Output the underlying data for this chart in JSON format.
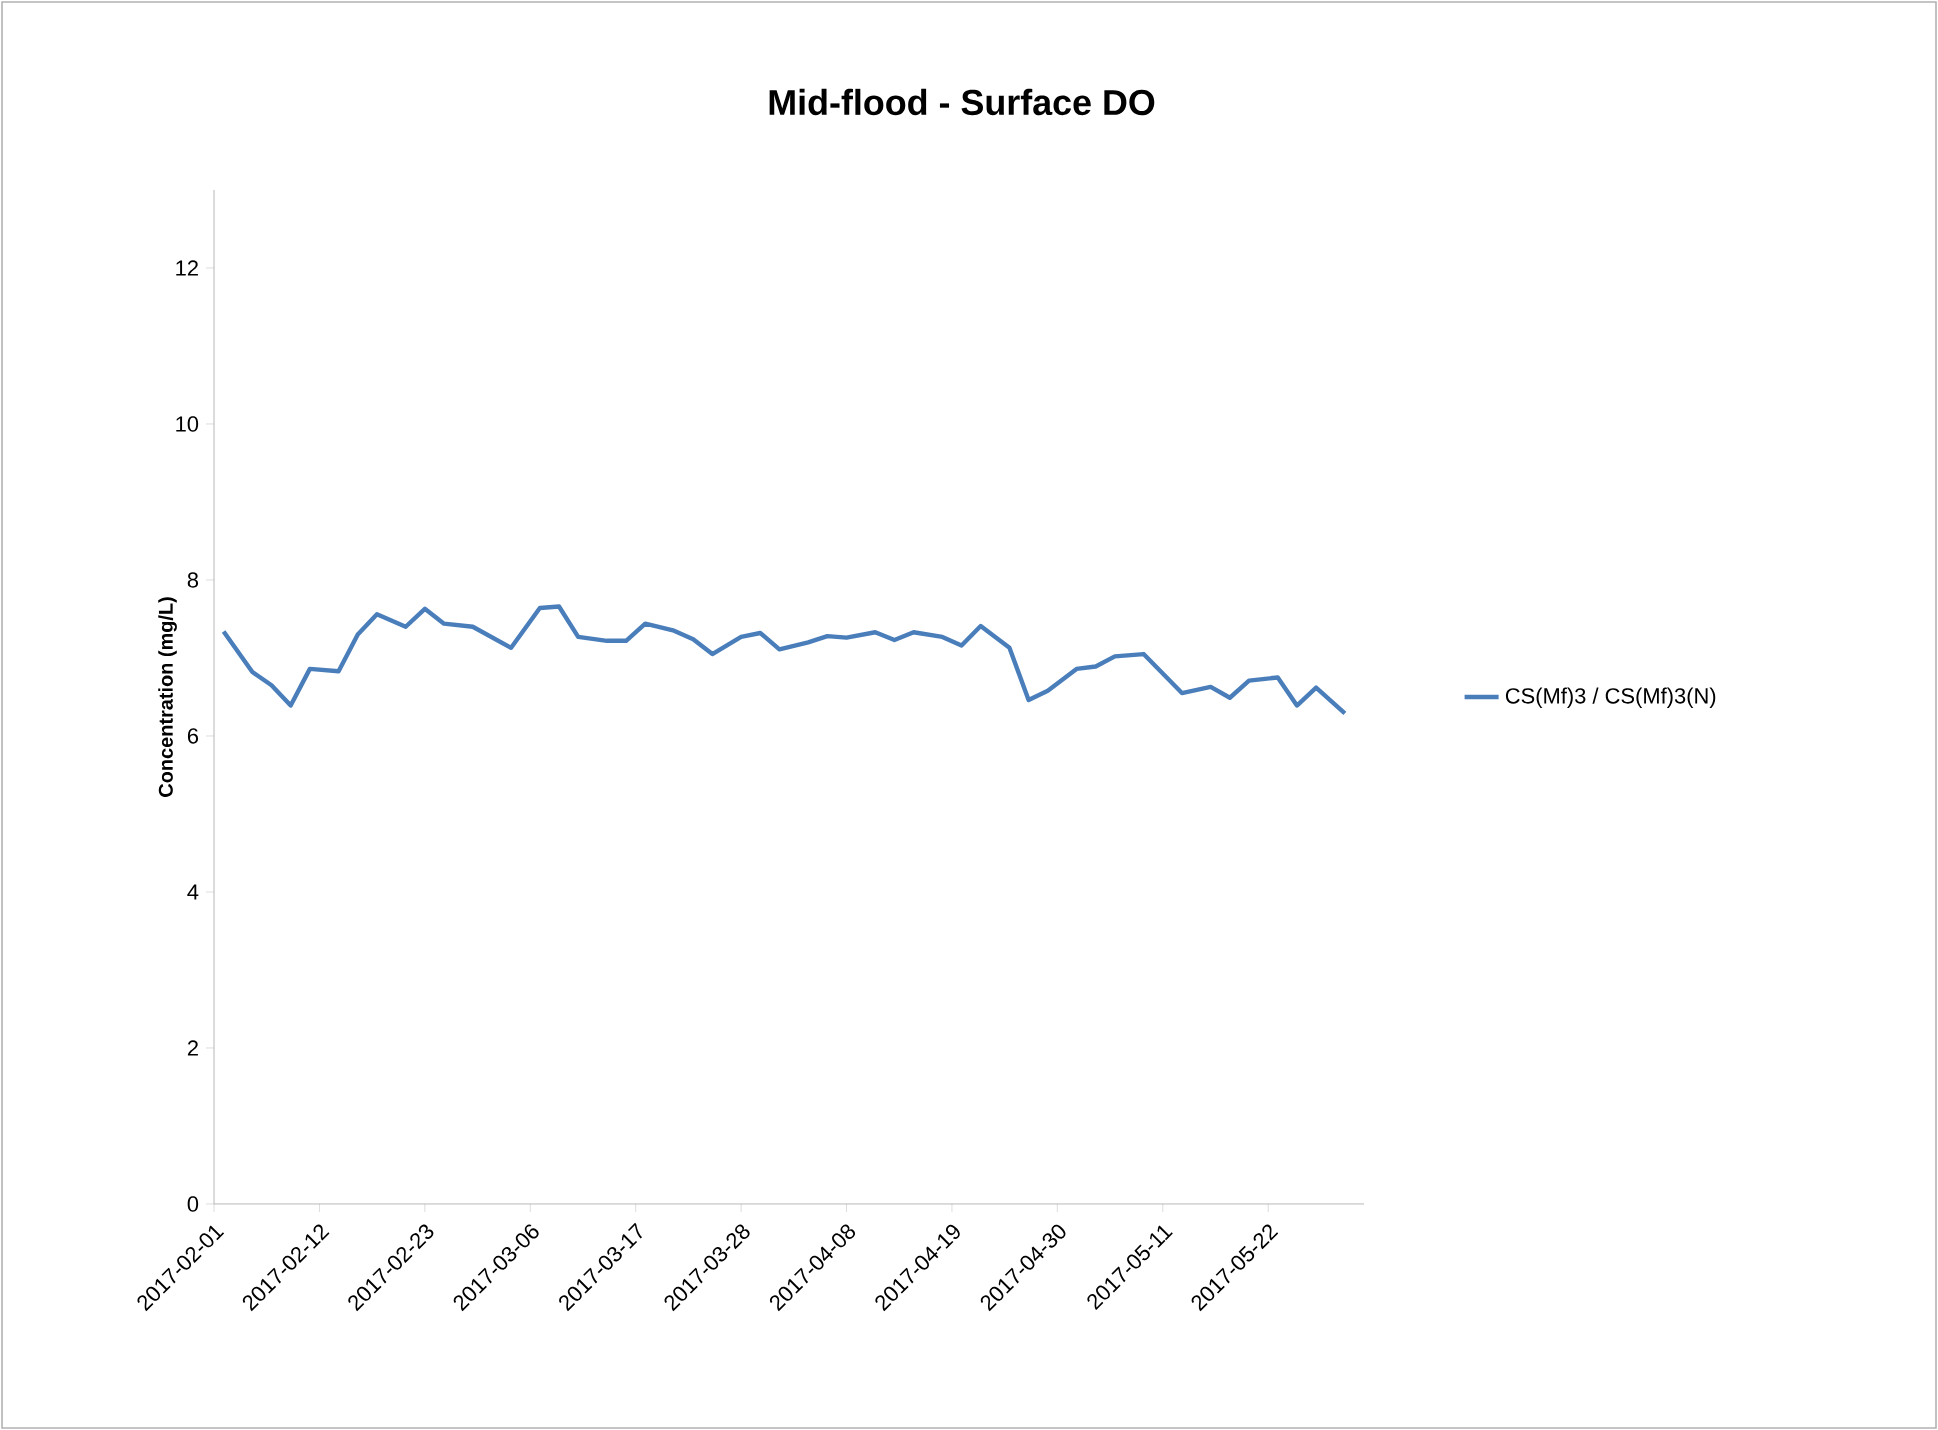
{
  "chart_data": {
    "type": "line",
    "title": "Mid-flood - Surface DO",
    "ylabel": "Concentration (mg/L)",
    "x": [
      "2017-02-02",
      "2017-02-05",
      "2017-02-07",
      "2017-02-09",
      "2017-02-11",
      "2017-02-14",
      "2017-02-16",
      "2017-02-18",
      "2017-02-21",
      "2017-02-23",
      "2017-02-25",
      "2017-02-28",
      "2017-03-04",
      "2017-03-07",
      "2017-03-09",
      "2017-03-11",
      "2017-03-14",
      "2017-03-16",
      "2017-03-18",
      "2017-03-21",
      "2017-03-23",
      "2017-03-25",
      "2017-03-28",
      "2017-03-30",
      "2017-04-01",
      "2017-04-04",
      "2017-04-06",
      "2017-04-08",
      "2017-04-11",
      "2017-04-13",
      "2017-04-15",
      "2017-04-18",
      "2017-04-20",
      "2017-04-22",
      "2017-04-25",
      "2017-04-27",
      "2017-04-29",
      "2017-05-02",
      "2017-05-04",
      "2017-05-06",
      "2017-05-09",
      "2017-05-13",
      "2017-05-16",
      "2017-05-18",
      "2017-05-20",
      "2017-05-23",
      "2017-05-25",
      "2017-05-27",
      "2017-05-30"
    ],
    "series": [
      {
        "name": "CS(Mf)3 / CS(Mf)3(N)",
        "color": "#4a7ebb",
        "values": [
          7.34,
          6.82,
          6.65,
          6.39,
          6.86,
          6.83,
          7.3,
          7.56,
          7.4,
          7.63,
          7.44,
          7.4,
          7.13,
          7.64,
          7.66,
          7.27,
          7.22,
          7.22,
          7.44,
          7.35,
          7.24,
          7.05,
          7.27,
          7.32,
          7.11,
          7.2,
          7.28,
          7.26,
          7.33,
          7.23,
          7.33,
          7.27,
          7.16,
          7.41,
          7.13,
          6.46,
          6.58,
          6.86,
          6.89,
          7.02,
          7.05,
          6.55,
          6.63,
          6.49,
          6.71,
          6.75,
          6.39,
          6.62,
          6.29
        ]
      }
    ],
    "xlim": [
      "2017-02-01",
      "2017-06-01"
    ],
    "xticks": [
      "2017-02-01",
      "2017-02-12",
      "2017-02-23",
      "2017-03-06",
      "2017-03-17",
      "2017-03-28",
      "2017-04-08",
      "2017-04-19",
      "2017-04-30",
      "2017-05-11",
      "2017-05-22"
    ],
    "ylim": [
      0,
      13
    ],
    "yticks": [
      0,
      2,
      4,
      6,
      8,
      10,
      12
    ],
    "grid": false,
    "legend": "right",
    "marker": "none",
    "line_style": "solid"
  }
}
